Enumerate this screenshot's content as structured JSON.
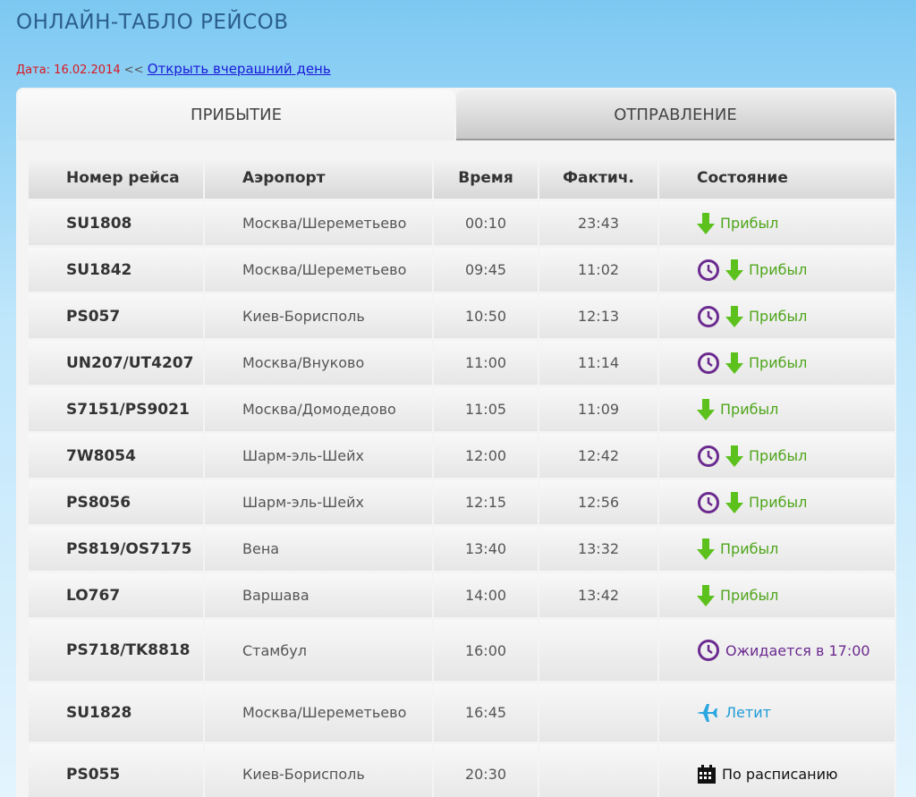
{
  "header": {
    "title": "ОНЛАЙН-ТАБЛО РЕЙСОВ",
    "date": "Дата: 16.02.2014",
    "separator": "<<",
    "link": "Открыть вчерашний день"
  },
  "tabs": [
    "ПРИБЫТИЕ",
    "ОТПРАВЛЕНИЕ"
  ],
  "table": {
    "columns": [
      "Номер рейса",
      "Аэропорт",
      "Время",
      "Фактич.",
      "Состояние"
    ],
    "rows": [
      [
        "SU1808",
        "Москва/Шереметьево",
        "00:10",
        "23:43",
        "Прибыл"
      ],
      [
        "SU1842",
        "Москва/Шереметьево",
        "09:45",
        "11:02",
        "Прибыл"
      ],
      [
        "PS057",
        "Киев-Борисполь",
        "10:50",
        "12:13",
        "Прибыл"
      ],
      [
        "UN207/UT4207",
        "Москва/Внуково",
        "11:00",
        "11:14",
        "Прибыл"
      ],
      [
        "S7151/PS9021",
        "Москва/Домодедово",
        "11:05",
        "11:09",
        "Прибыл"
      ],
      [
        "7W8054",
        "Шарм-эль-Шейх",
        "12:00",
        "12:42",
        "Прибыл"
      ],
      [
        "PS8056",
        "Шарм-эль-Шейх",
        "12:15",
        "12:56",
        "Прибыл"
      ],
      [
        "PS819/OS7175",
        "Вена",
        "13:40",
        "13:32",
        "Прибыл"
      ],
      [
        "LO767",
        "Варшава",
        "14:00",
        "13:42",
        "Прибыл"
      ],
      [
        "PS718/TK8818",
        "Стамбул",
        "16:00",
        null,
        "Ожидается в 17:00"
      ],
      [
        "SU1828",
        "Москва/Шереметьево",
        "16:45",
        null,
        "Летит"
      ],
      [
        "PS055",
        "Киев-Борисполь",
        "20:30",
        null,
        "По расписанию"
      ]
    ]
  }
}
